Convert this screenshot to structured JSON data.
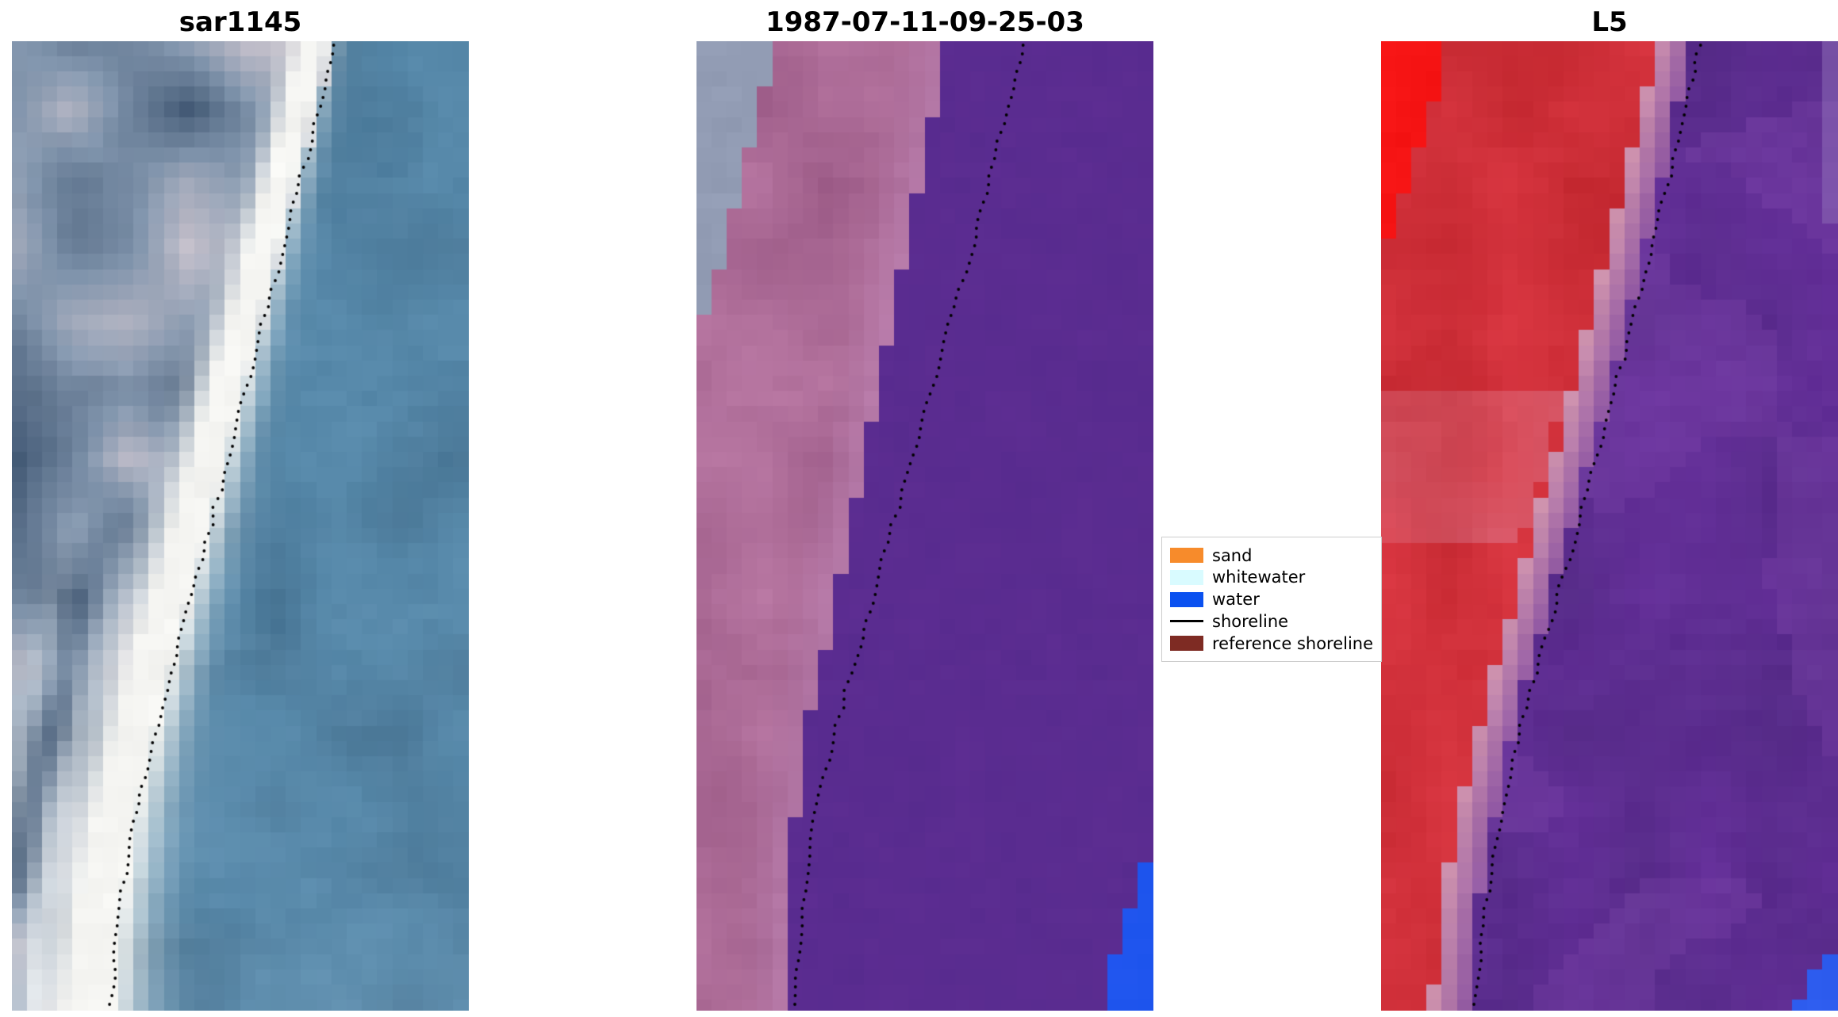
{
  "figure": {
    "background": "#ffffff",
    "panels": [
      {
        "title": "sar1145",
        "kind": "sar",
        "seed": 11,
        "shoreline": [
          [
            0.705,
            0.0
          ],
          [
            0.655,
            0.1
          ],
          [
            0.6,
            0.2
          ],
          [
            0.545,
            0.3
          ],
          [
            0.49,
            0.4
          ],
          [
            0.435,
            0.5
          ],
          [
            0.375,
            0.6
          ],
          [
            0.32,
            0.7
          ],
          [
            0.27,
            0.8
          ],
          [
            0.235,
            0.9
          ],
          [
            0.215,
            1.0
          ]
        ],
        "palette": {
          "water": "#5789aa",
          "band": "#f5f5f2",
          "land_dark": "#3c536f",
          "land_mid": "#8094ac",
          "land_pink": "#c8c2cc"
        }
      },
      {
        "title": "1987-07-11-09-25-03",
        "kind": "classified",
        "seed": 22,
        "shoreline": [
          [
            0.72,
            0.0
          ],
          [
            0.665,
            0.1
          ],
          [
            0.61,
            0.2
          ],
          [
            0.55,
            0.3
          ],
          [
            0.49,
            0.4
          ],
          [
            0.43,
            0.5
          ],
          [
            0.37,
            0.6
          ],
          [
            0.31,
            0.7
          ],
          [
            0.26,
            0.8
          ],
          [
            0.23,
            0.9
          ],
          [
            0.215,
            1.0
          ]
        ],
        "palette": {
          "pink": "#9d5c88",
          "pink_light": "#b877a2",
          "pale": "#c48ec0",
          "gray": "#929cb4",
          "purple": "#5a2c90",
          "blue": "#1f55ee"
        }
      },
      {
        "title": "L5",
        "kind": "falsecolor",
        "seed": 33,
        "shoreline": [
          [
            0.7,
            0.0
          ],
          [
            0.65,
            0.1
          ],
          [
            0.6,
            0.2
          ],
          [
            0.545,
            0.3
          ],
          [
            0.49,
            0.4
          ],
          [
            0.43,
            0.5
          ],
          [
            0.37,
            0.6
          ],
          [
            0.31,
            0.7
          ],
          [
            0.26,
            0.8
          ],
          [
            0.225,
            0.9
          ],
          [
            0.205,
            1.0
          ]
        ],
        "palette": {
          "red": "#c2272f",
          "red_bright": "#f61414",
          "pink_band": "#dd7d92",
          "pale": "#cf93ae",
          "purple": "#66309b",
          "purple_dark": "#542a86",
          "blue": "#2d5cee"
        }
      }
    ],
    "legend": {
      "items": [
        {
          "label": "sand",
          "swatch": "#f78b2b",
          "type": "patch"
        },
        {
          "label": "whitewater",
          "swatch": "#d9fbff",
          "type": "patch"
        },
        {
          "label": "water",
          "swatch": "#0a51f0",
          "type": "patch"
        },
        {
          "label": "shoreline",
          "swatch": "#000000",
          "type": "line"
        },
        {
          "label": "reference shoreline",
          "swatch": "#7e2b23",
          "type": "patch"
        }
      ]
    }
  },
  "chart_data": {
    "type": "image",
    "panels": [
      {
        "title": "sar1145",
        "content": "SAR satellite image in blue-gray tones; bright white beach band runs diagonally from top-right to bottom-left; black dotted mapped shoreline follows the band; water (steel blue) on the right"
      },
      {
        "title": "1987-07-11-09-25-03",
        "content": "Classified optical satellite image: mauve/pink land band on the left, grey patch top-left corner, uniform dark purple water region on the right, stepped blue water patch in bottom-right corner, black dotted shoreline along the class boundary"
      },
      {
        "title": "L5",
        "content": "Landsat 5 false-colour image: red land on the left with vivid red top-left corner, pale pink beach strip, violet/purple water on the right, small blue patch in bottom-right corner, black dotted shoreline"
      }
    ],
    "legend_entries": [
      "sand",
      "whitewater",
      "water",
      "shoreline",
      "reference shoreline"
    ],
    "legend_position": "center-right, between second and third panel",
    "shoreline_normalized_x_at_y": {
      "0.0": 0.71,
      "0.25": 0.58,
      "0.5": 0.43,
      "0.75": 0.29,
      "1.0": 0.21
    }
  }
}
